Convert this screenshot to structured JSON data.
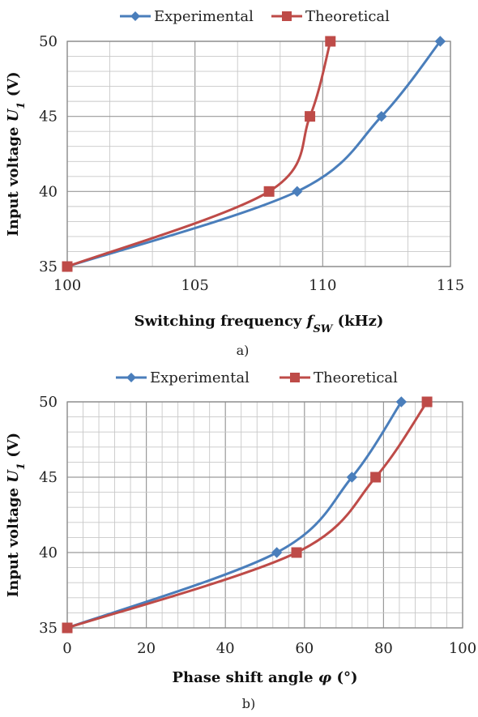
{
  "chart_data": [
    {
      "type": "line",
      "caption": "a)",
      "xlabel": "Switching frequency f_SW (kHz)",
      "ylabel": "Input voltage U_1 (V)",
      "xlim": [
        100,
        115
      ],
      "ylim": [
        35,
        50
      ],
      "x_ticks": [
        "100",
        "105",
        "110",
        "115"
      ],
      "y_ticks": [
        "35",
        "40",
        "45",
        "50"
      ],
      "grid": true,
      "legend_position": "top",
      "series": [
        {
          "name": "Experimental",
          "color": "#4a7ebb",
          "marker": "diamond",
          "points": [
            {
              "x": 100,
              "y": 35
            },
            {
              "x": 109,
              "y": 40
            },
            {
              "x": 112.3,
              "y": 45
            },
            {
              "x": 114.6,
              "y": 50
            }
          ]
        },
        {
          "name": "Theoretical",
          "color": "#be4b48",
          "marker": "square",
          "points": [
            {
              "x": 100,
              "y": 35
            },
            {
              "x": 107.9,
              "y": 40
            },
            {
              "x": 109.5,
              "y": 45
            },
            {
              "x": 110.3,
              "y": 50
            }
          ]
        }
      ]
    },
    {
      "type": "line",
      "caption": "b)",
      "xlabel": "Phase shift angle φ (°)",
      "ylabel": "Input voltage U_1 (V)",
      "xlim": [
        0,
        100
      ],
      "ylim": [
        35,
        50
      ],
      "x_ticks": [
        "0",
        "20",
        "40",
        "60",
        "80",
        "100"
      ],
      "y_ticks": [
        "35",
        "40",
        "45",
        "50"
      ],
      "grid": true,
      "legend_position": "top",
      "series": [
        {
          "name": "Experimental",
          "color": "#4a7ebb",
          "marker": "diamond",
          "points": [
            {
              "x": 0,
              "y": 35
            },
            {
              "x": 53,
              "y": 40
            },
            {
              "x": 72,
              "y": 45
            },
            {
              "x": 84.5,
              "y": 50
            }
          ]
        },
        {
          "name": "Theoretical",
          "color": "#be4b48",
          "marker": "square",
          "points": [
            {
              "x": 0,
              "y": 35
            },
            {
              "x": 58,
              "y": 40
            },
            {
              "x": 78,
              "y": 45
            },
            {
              "x": 91,
              "y": 50
            }
          ]
        }
      ]
    }
  ]
}
